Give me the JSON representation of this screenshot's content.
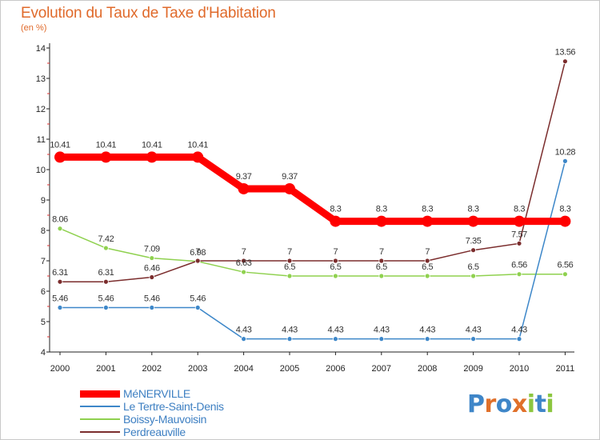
{
  "chart_data": {
    "type": "line",
    "title": "Evolution du Taux de Taxe d'Habitation",
    "subtitle": "(en %)",
    "x": [
      "2000",
      "2001",
      "2002",
      "2003",
      "2004",
      "2005",
      "2006",
      "2007",
      "2008",
      "2009",
      "2010",
      "2011"
    ],
    "ylim": [
      4,
      14
    ],
    "yticks": [
      "4",
      "5",
      "6",
      "7",
      "8",
      "9",
      "10",
      "11",
      "12",
      "13",
      "14"
    ],
    "grid": false,
    "legend_position": "bottom-left",
    "series": [
      {
        "name": "MéNERVILLE",
        "color": "#ff0000",
        "values": [
          10.41,
          10.41,
          10.41,
          10.41,
          9.37,
          9.37,
          8.3,
          8.3,
          8.3,
          8.3,
          8.3,
          8.3
        ],
        "labels": [
          "10.41",
          "10.41",
          "10.41",
          "10.41",
          "9.37",
          "9.37",
          "8.3",
          "8.3",
          "8.3",
          "8.3",
          "8.3",
          "8.3"
        ]
      },
      {
        "name": "Le Tertre-Saint-Denis",
        "color": "#3d87c9",
        "values": [
          5.46,
          5.46,
          5.46,
          5.46,
          4.43,
          4.43,
          4.43,
          4.43,
          4.43,
          4.43,
          4.43,
          10.28
        ],
        "labels": [
          "5.46",
          "5.46",
          "5.46",
          "5.46",
          "4.43",
          "4.43",
          "4.43",
          "4.43",
          "4.43",
          "4.43",
          "4.43",
          "10.28"
        ]
      },
      {
        "name": "Boissy-Mauvoisin",
        "color": "#8fd14f",
        "values": [
          8.06,
          7.42,
          7.09,
          6.98,
          6.63,
          6.5,
          6.5,
          6.5,
          6.5,
          6.5,
          6.56,
          6.56
        ],
        "labels": [
          "8.06",
          "7.42",
          "7.09",
          "6.98",
          "6.63",
          "6.5",
          "6.5",
          "6.5",
          "6.5",
          "6.5",
          "6.56",
          "6.56"
        ]
      },
      {
        "name": "Perdreauville",
        "color": "#7b2d2d",
        "values": [
          6.31,
          6.31,
          6.46,
          7,
          7,
          7,
          7,
          7,
          7,
          7.35,
          7.57,
          13.56
        ],
        "labels": [
          "6.31",
          "6.31",
          "6.46",
          "7",
          "7",
          "7",
          "7",
          "7",
          "7",
          "7.35",
          "7.57",
          "13.56"
        ]
      }
    ]
  },
  "logo": {
    "text": "Proxiti",
    "letters": [
      "P",
      "r",
      "o",
      "x",
      "i",
      "t",
      "i"
    ],
    "colors": [
      "#3f86c8",
      "#e0702a",
      "#3f86c8",
      "#e0702a",
      "#8cc63f",
      "#3f86c8",
      "#8cc63f"
    ]
  }
}
